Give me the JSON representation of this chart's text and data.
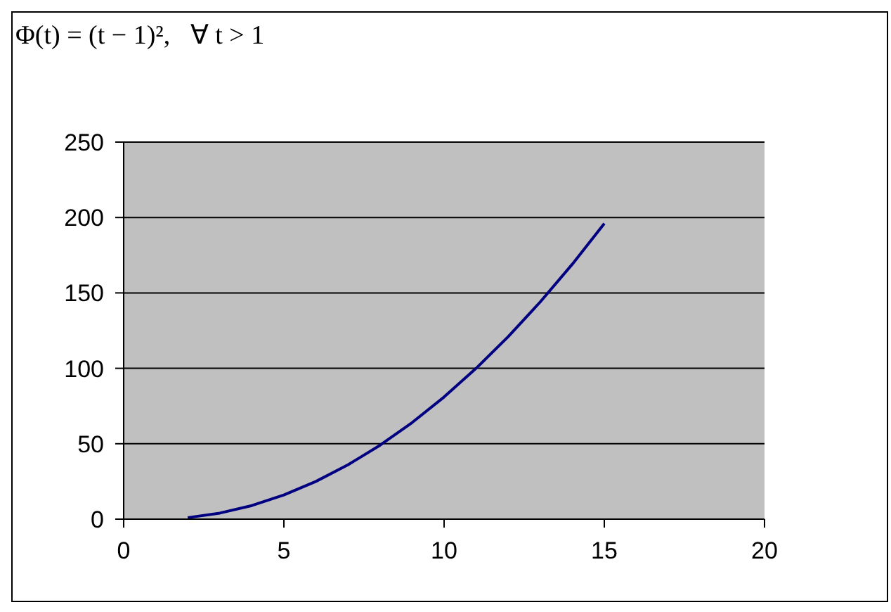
{
  "chart_data": {
    "type": "line",
    "title": "Φ(t) = (t − 1)²,   ∀ t > 1",
    "x": [
      2,
      3,
      4,
      5,
      6,
      7,
      8,
      9,
      10,
      11,
      12,
      13,
      14,
      15
    ],
    "series": [
      {
        "color": "#000080",
        "values": [
          1,
          4,
          9,
          16,
          25,
          36,
          49,
          64,
          81,
          100,
          121,
          144,
          169,
          196
        ]
      }
    ],
    "xlim": [
      0,
      20
    ],
    "xticks": [
      0,
      5,
      10,
      15,
      20
    ],
    "ylim": [
      0,
      250
    ],
    "yticks": [
      0,
      50,
      100,
      150,
      200,
      250
    ],
    "grid": "y",
    "legend": false,
    "marker": "none",
    "line_style": "solid"
  }
}
